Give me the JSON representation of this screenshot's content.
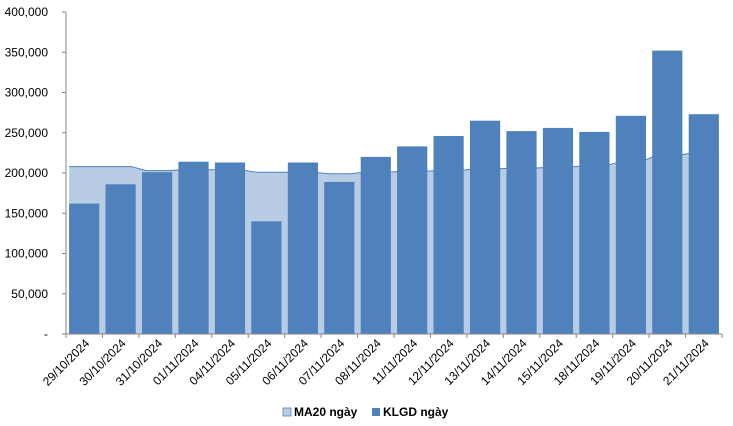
{
  "chart_data": {
    "type": "bar",
    "categories": [
      "29/10/2024",
      "30/10/2024",
      "31/10/2024",
      "01/11/2024",
      "04/11/2024",
      "05/11/2024",
      "06/11/2024",
      "07/11/2024",
      "08/11/2024",
      "11/11/2024",
      "12/11/2024",
      "13/11/2024",
      "14/11/2024",
      "15/11/2024",
      "18/11/2024",
      "19/11/2024",
      "20/11/2024",
      "21/11/2024"
    ],
    "series": [
      {
        "name": "MA20 ngày",
        "kind": "area",
        "color": "#b8cce4",
        "values": [
          208000,
          208000,
          203000,
          204000,
          204000,
          201000,
          201000,
          199000,
          201000,
          202000,
          203000,
          205000,
          206000,
          207000,
          209000,
          214000,
          222000,
          225000
        ]
      },
      {
        "name": "KLGD ngày",
        "kind": "bar",
        "color": "#4f81bd",
        "values": [
          162000,
          186000,
          201000,
          214000,
          213000,
          140000,
          213000,
          189000,
          220000,
          233000,
          246000,
          265000,
          252000,
          256000,
          251000,
          271000,
          352000,
          273000
        ]
      }
    ],
    "ylim": [
      0,
      400000
    ],
    "yticks": [
      0,
      50000,
      100000,
      150000,
      200000,
      250000,
      300000,
      350000,
      400000
    ],
    "ytick_labels": [
      "-",
      "50,000",
      "100,000",
      "150,000",
      "200,000",
      "250,000",
      "300,000",
      "350,000",
      "400,000"
    ],
    "grid": false,
    "legend_position": "bottom"
  }
}
